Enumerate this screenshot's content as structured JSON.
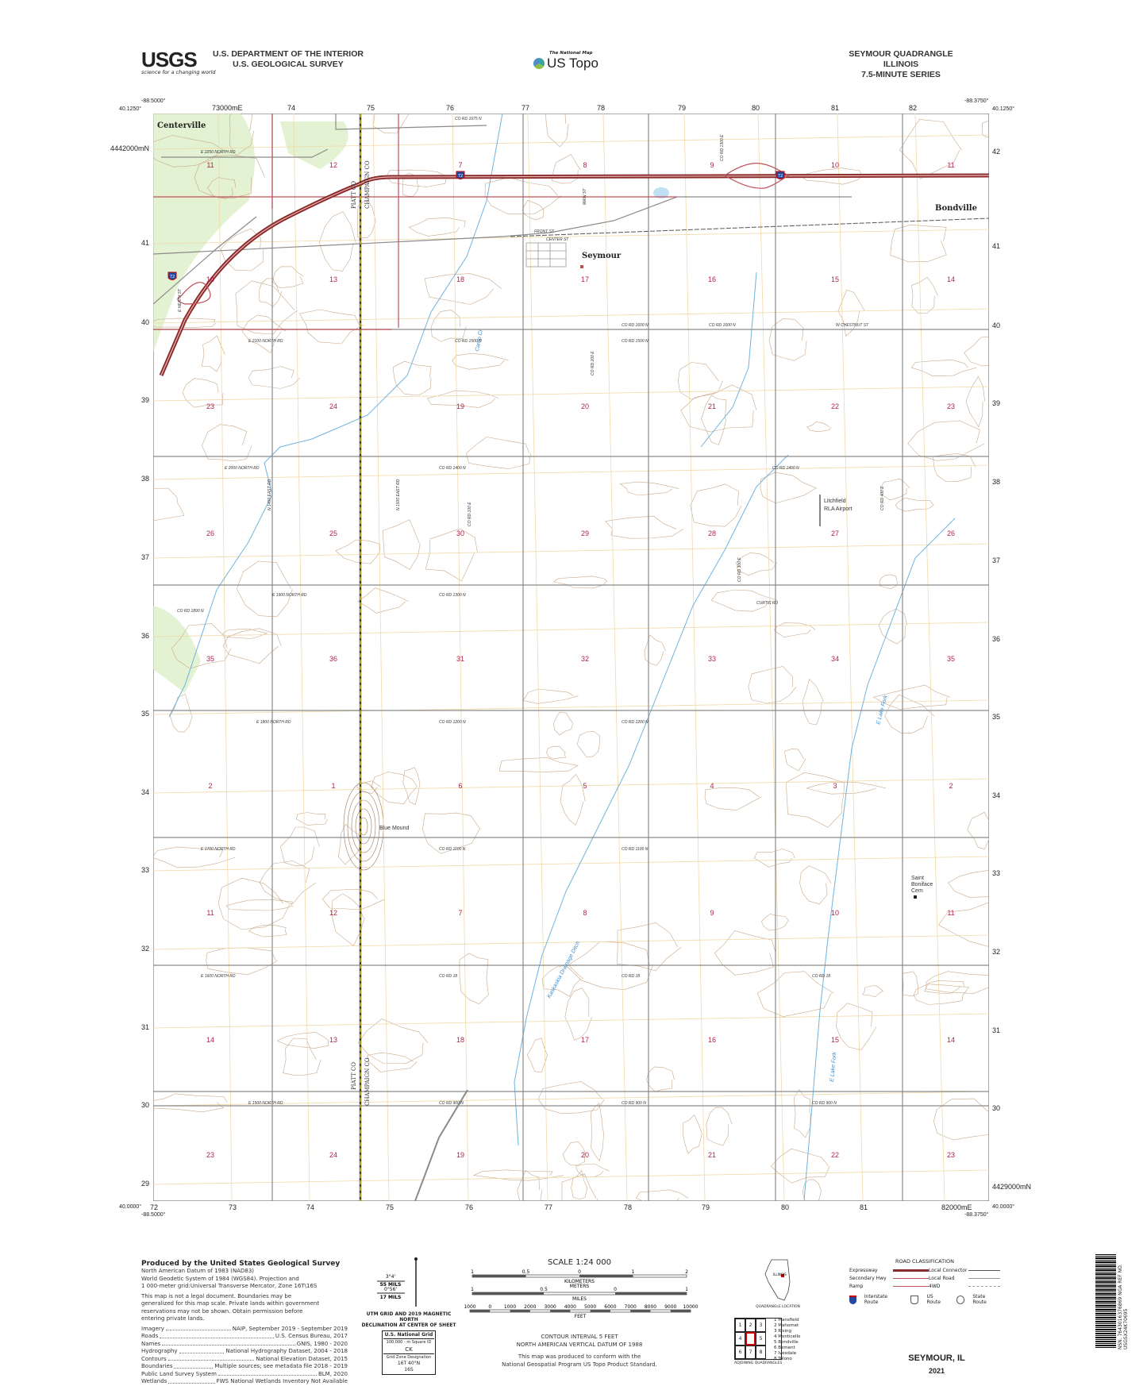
{
  "header": {
    "agency_logo": "USGS",
    "agency_tagline": "science for a changing world",
    "dept_line1": "U.S. DEPARTMENT OF THE INTERIOR",
    "dept_line2": "U.S. GEOLOGICAL SURVEY",
    "program_small": "The National Map",
    "program_logo": "US Topo",
    "quad_title": "SEYMOUR QUADRANGLE",
    "state": "ILLINOIS",
    "series": "7.5-MINUTE SERIES"
  },
  "coords": {
    "top_left_lon": "-88.5000°",
    "top_left_lat": "40.1250°",
    "top_right_lon": "-88.3750°",
    "top_right_lat": "40.1250°",
    "bottom_left_lon": "-88.5000°",
    "bottom_left_lat": "40.0000°",
    "bottom_right_lon": "-88.3750°",
    "bottom_right_lat": "40.0000°",
    "top_eastings": [
      "73000mE",
      "74",
      "75",
      "76",
      "77",
      "78",
      "79",
      "80",
      "81",
      "82"
    ],
    "bottom_eastings": [
      "72",
      "73",
      "74",
      "75",
      "76",
      "77",
      "78",
      "79",
      "80",
      "81",
      "82000mE"
    ],
    "left_northings": [
      "4442000mN",
      "41",
      "40",
      "39",
      "38",
      "37",
      "36",
      "35",
      "34",
      "33",
      "32",
      "31",
      "30",
      "29"
    ],
    "right_northings": [
      "42",
      "41",
      "40",
      "39",
      "38",
      "37",
      "36",
      "35",
      "34",
      "33",
      "32",
      "31",
      "30",
      "4429000mN"
    ]
  },
  "map": {
    "section_rows": [
      [
        "11",
        "12",
        "7",
        "8",
        "9",
        "10",
        "11"
      ],
      [
        "14",
        "13",
        "18",
        "17",
        "16",
        "15",
        "14"
      ],
      [
        "23",
        "24",
        "19",
        "20",
        "21",
        "22",
        "23"
      ],
      [
        "26",
        "25",
        "30",
        "29",
        "28",
        "27",
        "26"
      ],
      [
        "35",
        "36",
        "31",
        "32",
        "33",
        "34",
        "35"
      ],
      [
        "2",
        "1",
        "6",
        "5",
        "4",
        "3",
        "2"
      ],
      [
        "11",
        "12",
        "7",
        "8",
        "9",
        "10",
        "11"
      ],
      [
        "14",
        "13",
        "18",
        "17",
        "16",
        "15",
        "14"
      ],
      [
        "23",
        "24",
        "19",
        "20",
        "21",
        "22",
        "23"
      ]
    ],
    "places": {
      "centerville": "Centerville",
      "seymour": "Seymour",
      "bondville": "Bondville"
    },
    "features": {
      "airport_1": "Litchfield",
      "airport_2": "RLA Airport",
      "cem_1": "Saint",
      "cem_2": "Boniface",
      "cem_3": "Cem",
      "blue_mound": "Blue Mound"
    },
    "water": {
      "ditch": "Kaskaskia Drainage Ditch",
      "lake_fork_1": "E Lake Fork",
      "lake_fork_2": "E Lake Fork",
      "camp_creek": "Camp Cr"
    },
    "county": {
      "piatt": "PIATT CO",
      "champaign": "CHAMPAIGN CO"
    },
    "interstate": "72",
    "roads": {
      "r1675": "CO RD 1675 N",
      "r2250": "E 2250 NORTH RD",
      "r1600a": "CO RD 1600 N",
      "r1600b": "CO RD 1600 N",
      "chestnut": "W CHESTNUT ST",
      "front": "FRONT ST",
      "center": "CENTER ST",
      "main": "MAIN ST",
      "e2100": "E 2100 NORTH RD",
      "r1500": "CO RD 1500 N",
      "r1500b": "CO RD 1500 N",
      "e2000": "E 2000 NORTH RD",
      "r1400a": "CO RD 1400 N",
      "r1400b": "CO RD 1400 N",
      "e1900": "E 1900 NORTH RD",
      "r1300": "CO RD 1300 N",
      "r1890": "CO RD 1890 N",
      "curtis": "CURTIS RD",
      "e1800": "E 1800 NORTH RD",
      "r1200a": "CO RD 1200 N",
      "r1200b": "CO RD 1200 N",
      "e1700": "E 1700 NORTH RD",
      "r1100a": "CO RD 1100 N",
      "r1100b": "CO RD 1100 N",
      "e1600": "E 1600 NORTH RD",
      "r18a": "CO RD 18",
      "r18b": "CO RD 18",
      "r18c": "CO RD 18",
      "e1500": "E 1500 NORTH RD",
      "r900a": "CO RD 900 N",
      "r900b": "CO RD 900 N",
      "r900c": "CO RD 900 N",
      "n1400": "N 1400 EAST RD",
      "n1500": "N 1500 EAST RD",
      "r100e": "CO RD 100 E",
      "r200e": "CO RD 200 E",
      "r300e": "CO RD 300 E",
      "r400e": "CO RD 400 E",
      "e_heath": "E HEATH ST",
      "r1300e": "CO RD 1300 E"
    }
  },
  "footer": {
    "produced_by": "Produced by the United States Geological Survey",
    "datum_lines": [
      "North American Datum of 1983 (NAD83)",
      "World Geodetic System of 1984 (WGS84). Projection and",
      "1 000-meter grid:Universal Transverse Mercator, Zone 16T\\16S"
    ],
    "legal_lines": [
      "This map is not a legal document. Boundaries may be",
      "generalized for this map scale. Private lands within government",
      "reservations may not be shown. Obtain permission before",
      "entering private lands."
    ],
    "sources": [
      {
        "name": "Imagery",
        "value": "NAIP, September 2019 - September 2019"
      },
      {
        "name": "Roads",
        "value": "U.S. Census Bureau, 2017"
      },
      {
        "name": "Names",
        "value": "GNIS, 1980 - 2020"
      },
      {
        "name": "Hydrography",
        "value": "National Hydrography Dataset, 2004 - 2018"
      },
      {
        "name": "Contours",
        "value": "National Elevation Dataset, 2015"
      },
      {
        "name": "Boundaries",
        "value": "Multiple sources; see metadata file 2018 - 2019"
      },
      {
        "name": "Public Land Survey System",
        "value": "BLM, 2020"
      },
      {
        "name": "Wetlands",
        "value": "FWS National Wetlands Inventory Not Available"
      }
    ],
    "declination": {
      "gn": "3°4'",
      "gn_mils": "55 MILS",
      "mn": "0°56'",
      "mn_mils": "17 MILS",
      "caption1": "UTM GRID AND 2019 MAGNETIC NORTH",
      "caption2": "DECLINATION AT CENTER OF SHEET"
    },
    "grid_box": {
      "title": "U.S. National Grid",
      "sq_label": "100,000 - m Square ID",
      "sq": "CK",
      "gzd_label": "Grid Zone Designation",
      "gzd1": "16T",
      "gzd2": "16S",
      "lat": "40°N"
    },
    "scale": {
      "title": "SCALE 1:24 000",
      "km": "KILOMETERS",
      "m": "METERS",
      "mi": "MILES",
      "ft": "FEET",
      "km_ticks": [
        "1",
        "0.5",
        "0",
        "1",
        "2"
      ],
      "m_ticks": [
        "1000",
        "500",
        "0",
        "1000",
        "2000"
      ],
      "mi_ticks": [
        "1",
        "0.5",
        "0",
        "1"
      ],
      "ft_ticks": [
        "1000",
        "0",
        "1000",
        "2000",
        "3000",
        "4000",
        "5000",
        "6000",
        "7000",
        "8000",
        "9000",
        "10000"
      ]
    },
    "contour1": "CONTOUR INTERVAL 5 FEET",
    "contour2": "NORTH AMERICAN VERTICAL DATUM OF 1988",
    "conform1": "This map was produced to conform with the",
    "conform2": "National Geospatial Program US Topo Product Standard.",
    "state_label": "ILLINOIS",
    "quad_location": "QUADRANGLE LOCATION",
    "adjoining": {
      "cells": [
        "1",
        "2",
        "3",
        "4",
        "",
        "5",
        "6",
        "7",
        "8"
      ],
      "names": [
        "1 Mansfield",
        "2 Mahomet",
        "3 Rising",
        "4 Monticello",
        "5 Bondville",
        "6 Bement",
        "7 Ivesdale",
        "8 Tolono"
      ],
      "caption": "ADJOINING QUADRANGLES"
    },
    "road_class": {
      "title": "ROAD CLASSIFICATION",
      "expressway": "Expressway",
      "secondary": "Secondary Hwy",
      "ramp": "Ramp",
      "local_connector": "Local Connector",
      "local_road": "Local Road",
      "fourwd": "4WD",
      "interstate": "Interstate Route",
      "us": "US Route",
      "state": "State Route"
    },
    "sheet_name": "SEYMOUR, IL",
    "year": "2021",
    "barcode_text": "NSN. 7643016376869 NGA REF NO. USGSX24K70695"
  },
  "colors": {
    "section_number": "#b2234a",
    "interstate": "#8b2a2a",
    "secondary": "#c0505a",
    "water": "#6fb3e0",
    "contour": "#b08a6a",
    "vegetation": "#cfe6b0",
    "county_line": "#d9b400"
  }
}
